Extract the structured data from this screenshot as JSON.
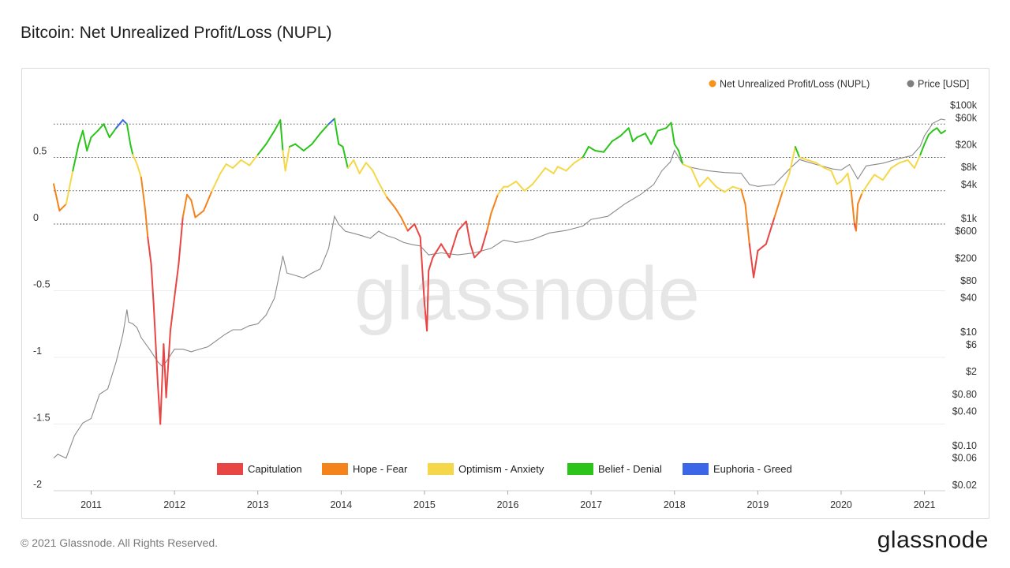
{
  "title": "Bitcoin: Net Unrealized Profit/Loss (NUPL)",
  "footer": {
    "copyright": "© 2021 Glassnode. All Rights Reserved.",
    "logo_text": "glassnode"
  },
  "watermark": "glassnode",
  "chart_data": {
    "type": "line",
    "title": "Bitcoin: Net Unrealized Profit/Loss (NUPL)",
    "x_range": [
      2010.55,
      2021.25
    ],
    "x_ticks": [
      {
        "value": 2011,
        "label": "2011"
      },
      {
        "value": 2012,
        "label": "2012"
      },
      {
        "value": 2013,
        "label": "2013"
      },
      {
        "value": 2014,
        "label": "2014"
      },
      {
        "value": 2015,
        "label": "2015"
      },
      {
        "value": 2016,
        "label": "2016"
      },
      {
        "value": 2017,
        "label": "2017"
      },
      {
        "value": 2018,
        "label": "2018"
      },
      {
        "value": 2019,
        "label": "2019"
      },
      {
        "value": 2020,
        "label": "2020"
      },
      {
        "value": 2021,
        "label": "2021"
      }
    ],
    "y_left": {
      "range": [
        -2,
        1
      ],
      "ticks": [
        {
          "value": 0.5,
          "label": "0.5"
        },
        {
          "value": 0,
          "label": "0"
        },
        {
          "value": -0.5,
          "label": "-0.5"
        },
        {
          "value": -1,
          "label": "-1"
        },
        {
          "value": -1.5,
          "label": "-1.5"
        },
        {
          "value": -2,
          "label": "-2"
        }
      ]
    },
    "y_right": {
      "scale": "log",
      "range": [
        0.016,
        180000
      ],
      "ticks": [
        {
          "value": 100000,
          "label": "$100k"
        },
        {
          "value": 60000,
          "label": "$60k"
        },
        {
          "value": 20000,
          "label": "$20k"
        },
        {
          "value": 8000,
          "label": "$8k"
        },
        {
          "value": 4000,
          "label": "$4k"
        },
        {
          "value": 1000,
          "label": "$1k"
        },
        {
          "value": 600,
          "label": "$600"
        },
        {
          "value": 200,
          "label": "$200"
        },
        {
          "value": 80,
          "label": "$80"
        },
        {
          "value": 40,
          "label": "$40"
        },
        {
          "value": 10,
          "label": "$10"
        },
        {
          "value": 6,
          "label": "$6"
        },
        {
          "value": 2,
          "label": "$2"
        },
        {
          "value": 0.8,
          "label": "$0.80"
        },
        {
          "value": 0.4,
          "label": "$0.40"
        },
        {
          "value": 0.1,
          "label": "$0.10"
        },
        {
          "value": 0.06,
          "label": "$0.06"
        },
        {
          "value": 0.02,
          "label": "$0.02"
        }
      ]
    },
    "zone_lines": [
      0.75,
      0.5,
      0.25,
      0
    ],
    "zones": [
      {
        "name": "Capitulation",
        "from": -2,
        "to": 0,
        "color": "#e84545"
      },
      {
        "name": "Hope - Fear",
        "from": 0,
        "to": 0.25,
        "color": "#f3831a"
      },
      {
        "name": "Optimism - Anxiety",
        "from": 0.25,
        "to": 0.5,
        "color": "#f5d849"
      },
      {
        "name": "Belief - Denial",
        "from": 0.5,
        "to": 0.75,
        "color": "#2bc41b"
      },
      {
        "name": "Euphoria - Greed",
        "from": 0.75,
        "to": 1,
        "color": "#3c66e8"
      }
    ],
    "legend_top": [
      {
        "name": "Net Unrealized Profit/Loss (NUPL)",
        "color": "#f7931a"
      },
      {
        "name": "Price [USD]",
        "color": "#7f7f7f"
      }
    ],
    "legend_placement": "top-right",
    "series": [
      {
        "name": "Net Unrealized Profit/Loss (NUPL)",
        "axis": "left",
        "x": [
          2010.55,
          2010.62,
          2010.7,
          2010.78,
          2010.85,
          2010.9,
          2010.95,
          2011.0,
          2011.08,
          2011.15,
          2011.22,
          2011.3,
          2011.38,
          2011.43,
          2011.47,
          2011.5,
          2011.55,
          2011.6,
          2011.65,
          2011.68,
          2011.72,
          2011.75,
          2011.8,
          2011.83,
          2011.87,
          2011.9,
          2011.95,
          2012.0,
          2012.05,
          2012.1,
          2012.15,
          2012.2,
          2012.25,
          2012.35,
          2012.45,
          2012.55,
          2012.62,
          2012.7,
          2012.8,
          2012.9,
          2013.0,
          2013.1,
          2013.2,
          2013.27,
          2013.3,
          2013.33,
          2013.38,
          2013.45,
          2013.55,
          2013.65,
          2013.75,
          2013.85,
          2013.92,
          2013.97,
          2014.02,
          2014.08,
          2014.15,
          2014.22,
          2014.3,
          2014.38,
          2014.46,
          2014.55,
          2014.65,
          2014.72,
          2014.8,
          2014.88,
          2014.95,
          2015.0,
          2015.03,
          2015.05,
          2015.1,
          2015.2,
          2015.3,
          2015.4,
          2015.5,
          2015.55,
          2015.6,
          2015.68,
          2015.75,
          2015.8,
          2015.88,
          2015.95,
          2016.0,
          2016.1,
          2016.2,
          2016.3,
          2016.45,
          2016.55,
          2016.6,
          2016.7,
          2016.8,
          2016.9,
          2016.97,
          2017.05,
          2017.15,
          2017.25,
          2017.35,
          2017.45,
          2017.5,
          2017.55,
          2017.65,
          2017.72,
          2017.8,
          2017.9,
          2017.96,
          2018.0,
          2018.05,
          2018.1,
          2018.2,
          2018.3,
          2018.4,
          2018.5,
          2018.6,
          2018.7,
          2018.8,
          2018.85,
          2018.9,
          2018.95,
          2019.0,
          2019.1,
          2019.2,
          2019.3,
          2019.38,
          2019.45,
          2019.5,
          2019.6,
          2019.7,
          2019.8,
          2019.88,
          2019.95,
          2020.0,
          2020.08,
          2020.12,
          2020.16,
          2020.18,
          2020.2,
          2020.25,
          2020.32,
          2020.4,
          2020.5,
          2020.6,
          2020.7,
          2020.8,
          2020.88,
          2020.95,
          2021.0,
          2021.05,
          2021.1,
          2021.15,
          2021.2,
          2021.25
        ],
        "y": [
          0.3,
          0.1,
          0.15,
          0.4,
          0.6,
          0.7,
          0.55,
          0.65,
          0.7,
          0.75,
          0.65,
          0.72,
          0.78,
          0.75,
          0.6,
          0.52,
          0.45,
          0.35,
          0.1,
          -0.1,
          -0.3,
          -0.6,
          -1.2,
          -1.5,
          -0.9,
          -1.3,
          -0.8,
          -0.55,
          -0.3,
          0.05,
          0.22,
          0.18,
          0.05,
          0.1,
          0.25,
          0.38,
          0.45,
          0.42,
          0.48,
          0.44,
          0.52,
          0.6,
          0.7,
          0.78,
          0.55,
          0.4,
          0.58,
          0.6,
          0.55,
          0.6,
          0.68,
          0.75,
          0.79,
          0.6,
          0.58,
          0.42,
          0.48,
          0.38,
          0.46,
          0.4,
          0.3,
          0.2,
          0.12,
          0.05,
          -0.05,
          0.0,
          -0.1,
          -0.6,
          -0.8,
          -0.35,
          -0.25,
          -0.15,
          -0.25,
          -0.05,
          0.02,
          -0.15,
          -0.25,
          -0.2,
          -0.05,
          0.08,
          0.22,
          0.28,
          0.28,
          0.32,
          0.25,
          0.3,
          0.42,
          0.38,
          0.43,
          0.4,
          0.46,
          0.5,
          0.58,
          0.55,
          0.54,
          0.62,
          0.66,
          0.72,
          0.62,
          0.65,
          0.68,
          0.6,
          0.7,
          0.72,
          0.76,
          0.6,
          0.55,
          0.45,
          0.42,
          0.28,
          0.35,
          0.28,
          0.24,
          0.28,
          0.26,
          0.15,
          -0.15,
          -0.4,
          -0.2,
          -0.15,
          0.05,
          0.25,
          0.38,
          0.58,
          0.5,
          0.48,
          0.46,
          0.42,
          0.4,
          0.3,
          0.32,
          0.38,
          0.25,
          0.0,
          -0.05,
          0.15,
          0.23,
          0.3,
          0.37,
          0.33,
          0.42,
          0.46,
          0.48,
          0.42,
          0.52,
          0.6,
          0.67,
          0.7,
          0.72,
          0.68,
          0.7
        ]
      },
      {
        "name": "Price [USD]",
        "axis": "right",
        "x": [
          2010.55,
          2010.6,
          2010.7,
          2010.8,
          2010.9,
          2011.0,
          2011.1,
          2011.2,
          2011.3,
          2011.38,
          2011.43,
          2011.45,
          2011.5,
          2011.55,
          2011.6,
          2011.7,
          2011.8,
          2011.85,
          2011.9,
          2012.0,
          2012.1,
          2012.2,
          2012.3,
          2012.4,
          2012.5,
          2012.6,
          2012.7,
          2012.8,
          2012.9,
          2013.0,
          2013.1,
          2013.2,
          2013.28,
          2013.3,
          2013.35,
          2013.45,
          2013.55,
          2013.65,
          2013.75,
          2013.85,
          2013.92,
          2013.97,
          2014.05,
          2014.15,
          2014.25,
          2014.35,
          2014.45,
          2014.55,
          2014.65,
          2014.75,
          2014.85,
          2014.95,
          2015.05,
          2015.2,
          2015.4,
          2015.6,
          2015.8,
          2015.95,
          2016.1,
          2016.3,
          2016.5,
          2016.7,
          2016.9,
          2017.0,
          2017.2,
          2017.4,
          2017.6,
          2017.75,
          2017.85,
          2017.95,
          2018.0,
          2018.1,
          2018.2,
          2018.4,
          2018.6,
          2018.8,
          2018.9,
          2019.0,
          2019.2,
          2019.4,
          2019.5,
          2019.7,
          2019.9,
          2020.0,
          2020.1,
          2020.2,
          2020.3,
          2020.5,
          2020.7,
          2020.85,
          2020.95,
          2021.0,
          2021.1,
          2021.2,
          2021.25
        ],
        "y": [
          0.06,
          0.07,
          0.06,
          0.15,
          0.25,
          0.3,
          0.8,
          1,
          3,
          9,
          25,
          15,
          14,
          12,
          8,
          5,
          3,
          2.5,
          3,
          5,
          5,
          4.5,
          5,
          5.5,
          7,
          9,
          11,
          11,
          13,
          14,
          20,
          40,
          150,
          220,
          110,
          100,
          90,
          110,
          130,
          300,
          1100,
          800,
          600,
          550,
          500,
          450,
          600,
          500,
          450,
          380,
          350,
          330,
          230,
          250,
          230,
          250,
          300,
          420,
          380,
          430,
          560,
          620,
          740,
          970,
          1100,
          1800,
          2700,
          4000,
          7000,
          10000,
          16000,
          9000,
          8000,
          7000,
          6500,
          6300,
          4000,
          3700,
          4000,
          8000,
          11000,
          9000,
          7500,
          7200,
          9000,
          5000,
          8500,
          9500,
          11500,
          13000,
          19000,
          29000,
          48000,
          57000,
          55000
        ]
      }
    ]
  }
}
